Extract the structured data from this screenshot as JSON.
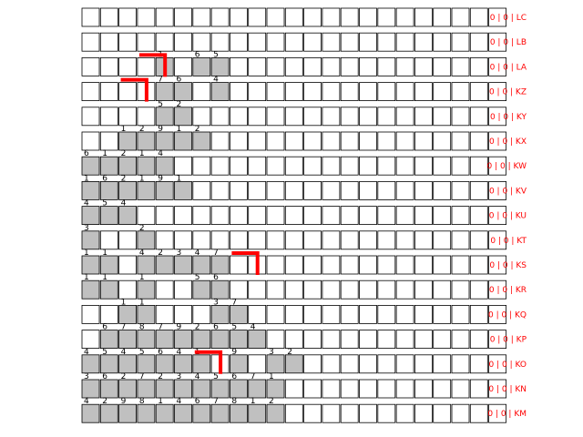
{
  "colors": {
    "label_red": "#ff0000",
    "filled_cell": "#c0c0c0",
    "empty_cell": "#ffffff",
    "cell_border": "#000000",
    "highlight": "#ff0000"
  },
  "rows": [
    {
      "id": "LC",
      "label": "0 | 0 | LC",
      "counts": [
        0,
        0,
        0,
        0,
        0,
        0,
        0,
        0,
        0,
        0,
        0,
        0,
        0,
        0,
        0,
        0,
        0,
        0,
        0,
        0,
        0,
        0,
        0
      ],
      "highlight": []
    },
    {
      "id": "LB",
      "label": "0 | 0 | LB",
      "counts": [
        0,
        0,
        0,
        0,
        0,
        0,
        0,
        0,
        0,
        0,
        0,
        0,
        0,
        0,
        0,
        0,
        0,
        0,
        0,
        0,
        0,
        0,
        0
      ],
      "highlight": []
    },
    {
      "id": "LA",
      "label": "0 | 0 | LA",
      "counts": [
        0,
        0,
        0,
        0,
        1,
        0,
        6,
        5,
        0,
        0,
        0,
        0,
        0,
        0,
        0,
        0,
        0,
        0,
        0,
        0,
        0,
        0,
        0
      ],
      "highlight": [
        3
      ]
    },
    {
      "id": "KZ",
      "label": "0 | 0 | KZ",
      "counts": [
        0,
        0,
        0,
        0,
        7,
        6,
        0,
        4,
        0,
        0,
        0,
        0,
        0,
        0,
        0,
        0,
        0,
        0,
        0,
        0,
        0,
        0,
        0
      ],
      "highlight": [
        2
      ]
    },
    {
      "id": "KY",
      "label": "0 | 0 | KY",
      "counts": [
        0,
        0,
        0,
        0,
        5,
        2,
        0,
        0,
        0,
        0,
        0,
        0,
        0,
        0,
        0,
        0,
        0,
        0,
        0,
        0,
        0,
        0,
        0
      ],
      "highlight": []
    },
    {
      "id": "KX",
      "label": "0 | 0 | KX",
      "counts": [
        0,
        0,
        1,
        2,
        9,
        1,
        2,
        0,
        0,
        0,
        0,
        0,
        0,
        0,
        0,
        0,
        0,
        0,
        0,
        0,
        0,
        0,
        0
      ],
      "highlight": []
    },
    {
      "id": "KW",
      "label": "0 | 0 | KW",
      "counts": [
        6,
        1,
        2,
        1,
        4,
        0,
        0,
        0,
        0,
        0,
        0,
        0,
        0,
        0,
        0,
        0,
        0,
        0,
        0,
        0,
        0,
        0,
        0
      ],
      "highlight": []
    },
    {
      "id": "KV",
      "label": "0 | 0 | KV",
      "counts": [
        1,
        6,
        2,
        1,
        9,
        1,
        0,
        0,
        0,
        0,
        0,
        0,
        0,
        0,
        0,
        0,
        0,
        0,
        0,
        0,
        0,
        0,
        0
      ],
      "highlight": []
    },
    {
      "id": "KU",
      "label": "0 | 0 | KU",
      "counts": [
        4,
        5,
        4,
        0,
        0,
        0,
        0,
        0,
        0,
        0,
        0,
        0,
        0,
        0,
        0,
        0,
        0,
        0,
        0,
        0,
        0,
        0,
        0
      ],
      "highlight": []
    },
    {
      "id": "KT",
      "label": "0 | 0 | KT",
      "counts": [
        3,
        0,
        0,
        2,
        0,
        0,
        0,
        0,
        0,
        0,
        0,
        0,
        0,
        0,
        0,
        0,
        0,
        0,
        0,
        0,
        0,
        0,
        0
      ],
      "highlight": []
    },
    {
      "id": "KS",
      "label": "0 | 0 | KS",
      "counts": [
        1,
        1,
        0,
        4,
        2,
        3,
        4,
        7,
        0,
        0,
        0,
        0,
        0,
        0,
        0,
        0,
        0,
        0,
        0,
        0,
        0,
        0,
        0
      ],
      "highlight": [
        8
      ]
    },
    {
      "id": "KR",
      "label": "0 | 0 | KR",
      "counts": [
        1,
        1,
        0,
        1,
        0,
        0,
        5,
        6,
        0,
        0,
        0,
        0,
        0,
        0,
        0,
        0,
        0,
        0,
        0,
        0,
        0,
        0,
        0
      ],
      "highlight": []
    },
    {
      "id": "KQ",
      "label": "0 | 0 | KQ",
      "counts": [
        0,
        0,
        1,
        1,
        0,
        0,
        0,
        3,
        7,
        0,
        0,
        0,
        0,
        0,
        0,
        0,
        0,
        0,
        0,
        0,
        0,
        0,
        0
      ],
      "highlight": []
    },
    {
      "id": "KP",
      "label": "0 | 0 | KP",
      "counts": [
        0,
        6,
        7,
        8,
        7,
        9,
        2,
        6,
        5,
        4,
        0,
        0,
        0,
        0,
        0,
        0,
        0,
        0,
        0,
        0,
        0,
        0,
        0
      ],
      "highlight": []
    },
    {
      "id": "KO",
      "label": "0 | 0 | KO",
      "counts": [
        4,
        5,
        4,
        5,
        6,
        4,
        1,
        0,
        9,
        0,
        3,
        2,
        0,
        0,
        0,
        0,
        0,
        0,
        0,
        0,
        0,
        0,
        0
      ],
      "highlight": [
        6
      ]
    },
    {
      "id": "KN",
      "label": "0 | 0 | KN",
      "counts": [
        3,
        6,
        2,
        7,
        2,
        3,
        4,
        5,
        6,
        7,
        1,
        0,
        0,
        0,
        0,
        0,
        0,
        0,
        0,
        0,
        0,
        0,
        0
      ],
      "highlight": []
    },
    {
      "id": "KM",
      "label": "0 | 0 | KM",
      "counts": [
        4,
        2,
        9,
        8,
        1,
        4,
        6,
        7,
        8,
        1,
        2,
        0,
        0,
        0,
        0,
        0,
        0,
        0,
        0,
        0,
        0,
        0,
        0
      ],
      "highlight": []
    }
  ]
}
